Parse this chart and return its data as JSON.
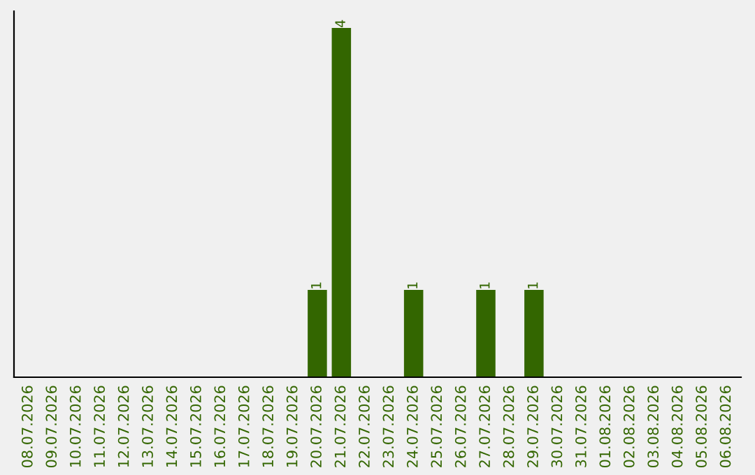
{
  "chart_data": {
    "type": "bar",
    "categories": [
      "08.07.2026",
      "09.07.2026",
      "10.07.2026",
      "11.07.2026",
      "12.07.2026",
      "13.07.2026",
      "14.07.2026",
      "15.07.2026",
      "16.07.2026",
      "17.07.2026",
      "18.07.2026",
      "19.07.2026",
      "20.07.2026",
      "21.07.2026",
      "22.07.2026",
      "23.07.2026",
      "24.07.2026",
      "25.07.2026",
      "26.07.2026",
      "27.07.2026",
      "28.07.2026",
      "29.07.2026",
      "30.07.2026",
      "31.07.2026",
      "01.08.2026",
      "02.08.2026",
      "03.08.2026",
      "04.08.2026",
      "05.08.2026",
      "06.08.2026"
    ],
    "values": [
      null,
      null,
      null,
      null,
      null,
      null,
      null,
      null,
      null,
      null,
      null,
      null,
      1,
      4,
      null,
      null,
      1,
      null,
      null,
      1,
      null,
      1,
      null,
      null,
      null,
      null,
      null,
      null,
      null,
      null
    ],
    "data_labels": true,
    "color": "#336600"
  }
}
